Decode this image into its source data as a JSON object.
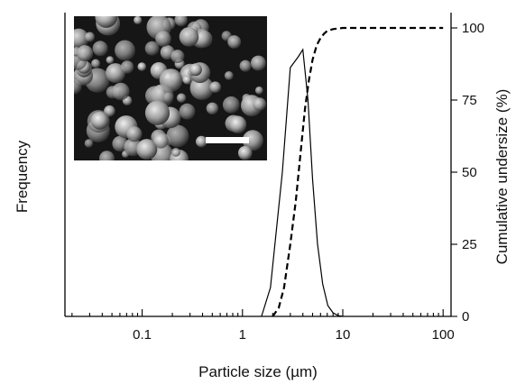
{
  "chart_data": {
    "type": "line",
    "xlabel": "Particle size (µm)",
    "ylabel_left": "Frequency",
    "ylabel_right": "Cumulative undersize (%)",
    "x_scale": "log",
    "xlim": [
      0.017,
      120
    ],
    "ylim_right": [
      0,
      100
    ],
    "x_tick_labels": [
      "0.1",
      "1",
      "10",
      "100"
    ],
    "x_tick_values": [
      0.1,
      1,
      10,
      100
    ],
    "y_right_tick_labels": [
      "0",
      "25",
      "50",
      "75",
      "100"
    ],
    "y_right_tick_values": [
      0,
      25,
      50,
      75,
      100
    ],
    "grid": false,
    "inset": "SEM micrograph of spherical particles with scale bar",
    "series": [
      {
        "style": "solid",
        "axis": "left",
        "x": [
          1.55,
          1.9,
          2.5,
          3.0,
          3.6,
          4.0,
          4.5,
          5.0,
          5.6,
          6.3,
          7.1,
          8.0,
          9.0,
          10.0
        ],
        "values": [
          0,
          8,
          40,
          69,
          72,
          74,
          60,
          38,
          20,
          9,
          3,
          1,
          0.2,
          0
        ]
      },
      {
        "style": "dashed",
        "axis": "right",
        "x": [
          2.0,
          2.3,
          2.6,
          3.0,
          3.4,
          3.8,
          4.2,
          4.6,
          5.0,
          5.5,
          6.0,
          6.5,
          7.0,
          8.0,
          10,
          20,
          50,
          100
        ],
        "values": [
          0,
          3,
          10,
          25,
          40,
          57,
          72,
          82,
          89,
          94,
          96.5,
          98,
          99,
          99.6,
          100,
          100,
          100,
          100
        ]
      }
    ]
  },
  "colors": {
    "line": "#000000"
  }
}
